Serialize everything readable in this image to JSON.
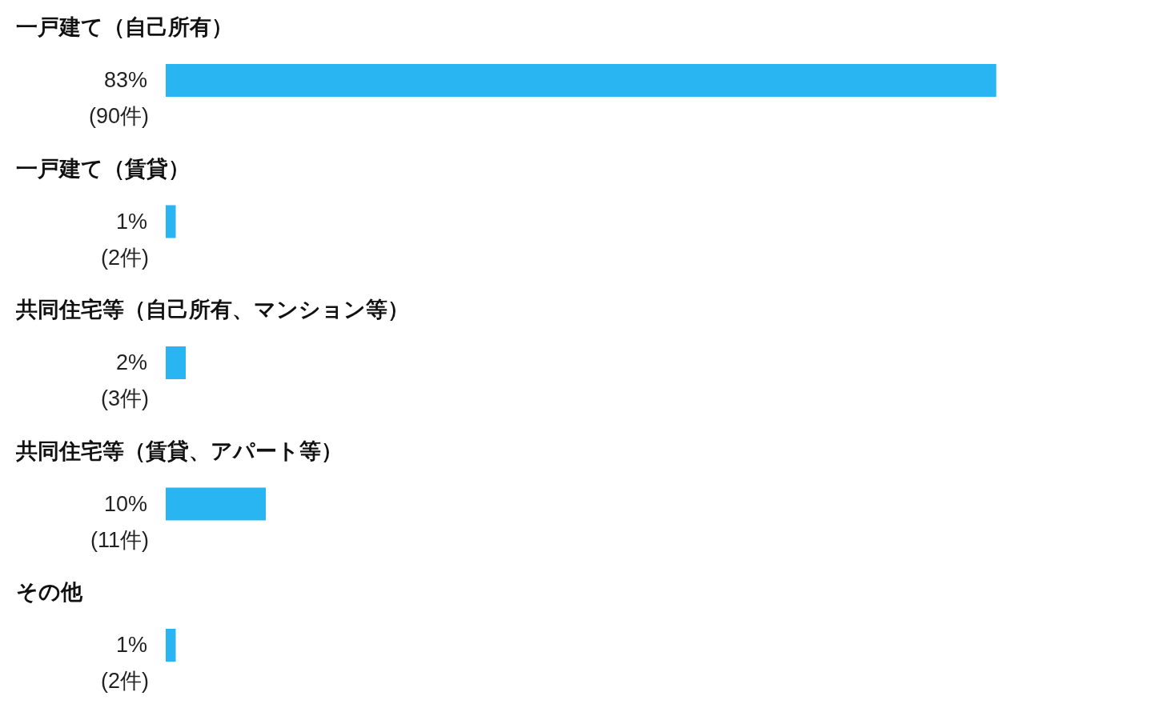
{
  "chart_data": {
    "type": "bar",
    "orientation": "horizontal",
    "categories": [
      "一戸建て（自己所有）",
      "一戸建て（賃貸）",
      "共同住宅等（自己所有、マンション等）",
      "共同住宅等（賃貸、アパート等）",
      "その他"
    ],
    "values": [
      83,
      1,
      2,
      10,
      1
    ],
    "value_labels": [
      "83%\n(90件)",
      "1%\n(2件)",
      "2%\n(3件)",
      "10%\n(11件)",
      "1%\n(2件)"
    ],
    "color": "#29b5f1"
  }
}
